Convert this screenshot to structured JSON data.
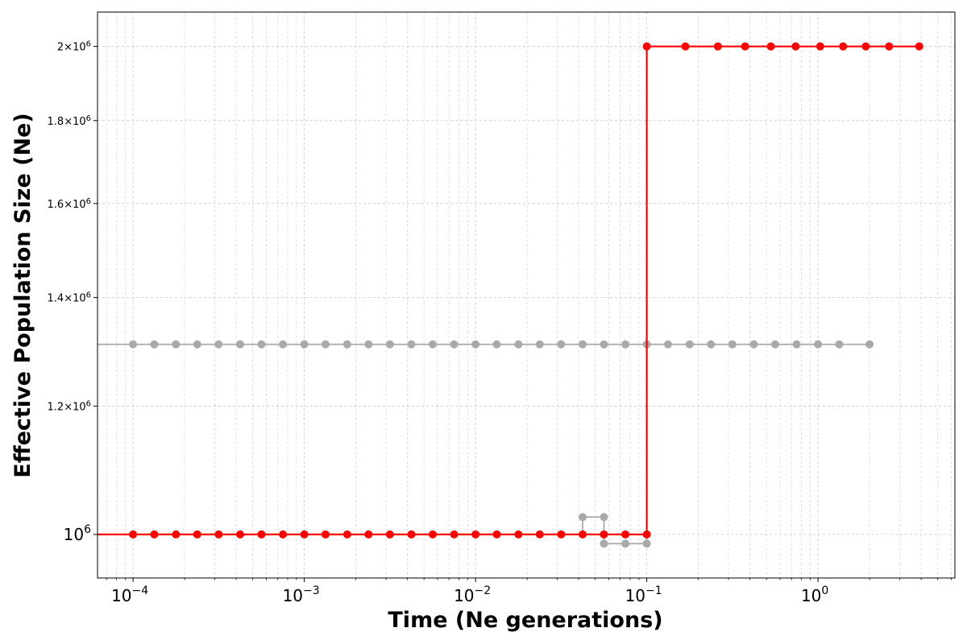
{
  "chart_data": {
    "type": "line",
    "xlabel": "Time (Ne generations)",
    "ylabel": "Effective Population Size (Ne)",
    "xscale": "log",
    "yscale": "log",
    "xlim": [
      6.2e-05,
      6.3
    ],
    "ylim": [
      940000,
      2100000
    ],
    "grid": true,
    "x_ticks": [
      {
        "value": 0.0001,
        "label": "10^-4"
      },
      {
        "value": 0.001,
        "label": "10^-3"
      },
      {
        "value": 0.01,
        "label": "10^-2"
      },
      {
        "value": 0.1,
        "label": "10^-1"
      },
      {
        "value": 1,
        "label": "10^0"
      }
    ],
    "y_ticks": [
      {
        "value": 1000000,
        "label": "10^6"
      },
      {
        "value": 1200000,
        "label": "1.2×10^6"
      },
      {
        "value": 1400000,
        "label": "1.4×10^6"
      },
      {
        "value": 1600000,
        "label": "1.6×10^6"
      },
      {
        "value": 1800000,
        "label": "1.8×10^6"
      },
      {
        "value": 2000000,
        "label": "2×10^6"
      }
    ],
    "series": [
      {
        "color": "#a9a9a9",
        "marker_x": [
          0.0001,
          0.000133,
          0.000178,
          0.000237,
          0.000316,
          0.000422,
          0.000562,
          0.00075,
          0.001,
          0.00133,
          0.00178,
          0.00237,
          0.00316,
          0.00422,
          0.00562,
          0.0075,
          0.01,
          0.0133,
          0.0178,
          0.0237,
          0.0316,
          0.0422,
          0.0562,
          0.075,
          0.1,
          0.133,
          0.178,
          0.237,
          0.316,
          0.422,
          0.562,
          0.75,
          1.0,
          1.33,
          2.0
        ],
        "marker_y": 1310000,
        "extra_points": [
          {
            "x": 0.0422,
            "y": 1025000
          },
          {
            "x": 0.0562,
            "y": 1025000
          },
          {
            "x": 0.0562,
            "y": 987000
          },
          {
            "x": 0.075,
            "y": 987000
          },
          {
            "x": 0.1,
            "y": 987000
          }
        ],
        "line_path": [
          [
            6.2e-05,
            1310000
          ],
          [
            2.0,
            1310000
          ]
        ],
        "step_path": [
          [
            6.2e-05,
            1000000
          ],
          [
            0.0422,
            1000000
          ],
          [
            0.0422,
            1025000
          ],
          [
            0.0562,
            1025000
          ],
          [
            0.0562,
            987000
          ],
          [
            0.1,
            987000
          ],
          [
            0.1,
            1000000
          ]
        ]
      },
      {
        "color": "#ff0000",
        "line_path": [
          [
            6.2e-05,
            1000000
          ],
          [
            0.1,
            1000000
          ],
          [
            0.1,
            2000000
          ],
          [
            4.0,
            2000000
          ]
        ],
        "points": [
          {
            "x": 0.0001,
            "y": 1000000
          },
          {
            "x": 0.000133,
            "y": 1000000
          },
          {
            "x": 0.000178,
            "y": 1000000
          },
          {
            "x": 0.000237,
            "y": 1000000
          },
          {
            "x": 0.000316,
            "y": 1000000
          },
          {
            "x": 0.000422,
            "y": 1000000
          },
          {
            "x": 0.000562,
            "y": 1000000
          },
          {
            "x": 0.00075,
            "y": 1000000
          },
          {
            "x": 0.001,
            "y": 1000000
          },
          {
            "x": 0.00133,
            "y": 1000000
          },
          {
            "x": 0.00178,
            "y": 1000000
          },
          {
            "x": 0.00237,
            "y": 1000000
          },
          {
            "x": 0.00316,
            "y": 1000000
          },
          {
            "x": 0.00422,
            "y": 1000000
          },
          {
            "x": 0.00562,
            "y": 1000000
          },
          {
            "x": 0.0075,
            "y": 1000000
          },
          {
            "x": 0.01,
            "y": 1000000
          },
          {
            "x": 0.0133,
            "y": 1000000
          },
          {
            "x": 0.0178,
            "y": 1000000
          },
          {
            "x": 0.0237,
            "y": 1000000
          },
          {
            "x": 0.0316,
            "y": 1000000
          },
          {
            "x": 0.0422,
            "y": 1000000
          },
          {
            "x": 0.0562,
            "y": 1000000
          },
          {
            "x": 0.075,
            "y": 1000000
          },
          {
            "x": 0.1,
            "y": 1000000
          },
          {
            "x": 0.1,
            "y": 2000000
          },
          {
            "x": 0.168,
            "y": 2000000
          },
          {
            "x": 0.26,
            "y": 2000000
          },
          {
            "x": 0.375,
            "y": 2000000
          },
          {
            "x": 0.53,
            "y": 2000000
          },
          {
            "x": 0.74,
            "y": 2000000
          },
          {
            "x": 1.03,
            "y": 2000000
          },
          {
            "x": 1.4,
            "y": 2000000
          },
          {
            "x": 1.9,
            "y": 2000000
          },
          {
            "x": 2.6,
            "y": 2000000
          },
          {
            "x": 3.9,
            "y": 2000000
          }
        ]
      }
    ]
  }
}
